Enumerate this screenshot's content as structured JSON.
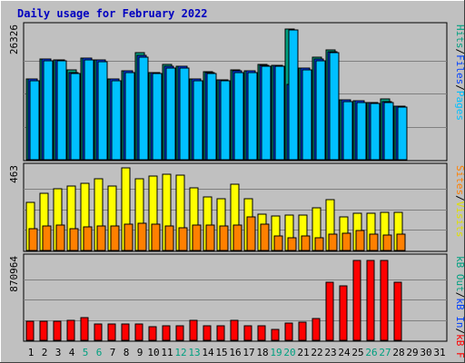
{
  "chart_data": {
    "type": "bar",
    "title": "Daily usage for February 2022",
    "days": [
      "1",
      "2",
      "3",
      "4",
      "5",
      "6",
      "7",
      "8",
      "9",
      "10",
      "11",
      "12",
      "13",
      "14",
      "15",
      "16",
      "17",
      "18",
      "19",
      "20",
      "21",
      "22",
      "23",
      "24",
      "25",
      "26",
      "27",
      "28",
      "29",
      "30",
      "31"
    ],
    "weekend_days": [
      5,
      6,
      12,
      13,
      19,
      20,
      26,
      27
    ],
    "panels": [
      {
        "name": "requests",
        "ymax_label": "26326",
        "ymax": 26326,
        "right_label_parts": [
          "Pages",
          "/",
          "Files",
          "/",
          "Hits"
        ],
        "right_label_colors": [
          "#00c0ff",
          "#000000",
          "#0040ff",
          "#000000",
          "#00a080"
        ],
        "series": [
          {
            "name": "Hits",
            "color": "#00a080",
            "values": [
              16000,
              20000,
              19900,
              17800,
              20200,
              19800,
              16000,
              17700,
              21300,
              17400,
              18900,
              18600,
              16000,
              17500,
              15900,
              17800,
              17700,
              19000,
              18800,
              26000,
              18200,
              20300,
              21800,
              11900,
              11700,
              11400,
              12000,
              10700,
              null,
              null,
              null
            ]
          },
          {
            "name": "Files",
            "color": "#0040ff",
            "values": [
              16000,
              20000,
              19900,
              17400,
              20200,
              19800,
              16000,
              17700,
              20700,
              17400,
              18600,
              18500,
              16000,
              17400,
              15900,
              17700,
              17600,
              18800,
              18800,
              15000,
              18200,
              20000,
              21500,
              11900,
              11700,
              11400,
              11600,
              10700,
              null,
              null,
              null
            ]
          },
          {
            "name": "Pages",
            "color": "#00c0ff",
            "values": [
              15700,
              19700,
              19600,
              17100,
              19900,
              19500,
              15700,
              17400,
              20400,
              17100,
              18300,
              18200,
              15700,
              17100,
              15600,
              17400,
              17300,
              18500,
              18500,
              25800,
              17900,
              19700,
              21200,
              11600,
              11400,
              11100,
              11300,
              10400,
              null,
              null,
              null
            ]
          }
        ]
      },
      {
        "name": "visits",
        "ymax_label": "463",
        "ymax": 463,
        "right_label_parts": [
          "Visits",
          "/",
          "Sites"
        ],
        "right_label_colors": [
          "#e0e000",
          "#000000",
          "#ff8000"
        ],
        "series": [
          {
            "name": "Visits",
            "color": "#ffff00",
            "values": [
              270,
              320,
              345,
              360,
              375,
              400,
              360,
              463,
              400,
              415,
              425,
              420,
              350,
              300,
              290,
              370,
              290,
              205,
              195,
              200,
              200,
              240,
              285,
              190,
              210,
              210,
              215,
              215,
              null,
              null,
              null
            ]
          },
          {
            "name": "Sites",
            "color": "#ff8000",
            "values": [
              120,
              138,
              140,
              120,
              130,
              135,
              137,
              150,
              155,
              150,
              135,
              125,
              142,
              140,
              135,
              142,
              190,
              150,
              80,
              70,
              80,
              70,
              90,
              95,
              112,
              90,
              85,
              90,
              null,
              null,
              null
            ]
          }
        ]
      },
      {
        "name": "traffic",
        "ymax_label": "870964",
        "ymax": 870964,
        "right_label_parts": [
          "kB F",
          "/",
          "kB In",
          "/",
          "kB Out"
        ],
        "right_label_colors": [
          "#ff0000",
          "#000000",
          "#0040ff",
          "#000000",
          "#00a080"
        ],
        "series": [
          {
            "name": "kB F",
            "color": "#ff0000",
            "values": [
              207000,
              207000,
              200000,
              215000,
              245000,
              170000,
              170000,
              177000,
              175000,
              145000,
              150000,
              150000,
              213000,
              150000,
              155000,
              215000,
              155000,
              150000,
              115000,
              183000,
              195000,
              233000,
              619000,
              582000,
              856000,
              856000,
              856000,
              619000,
              null,
              null,
              null
            ]
          }
        ]
      }
    ]
  },
  "colors": {
    "frame_bg": "#c0c0c0",
    "panel_bg": "#c0c0c0",
    "grid": "#808080",
    "title": "#0000c0",
    "day_weekday": "#000000",
    "day_weekend": "#00a080"
  }
}
